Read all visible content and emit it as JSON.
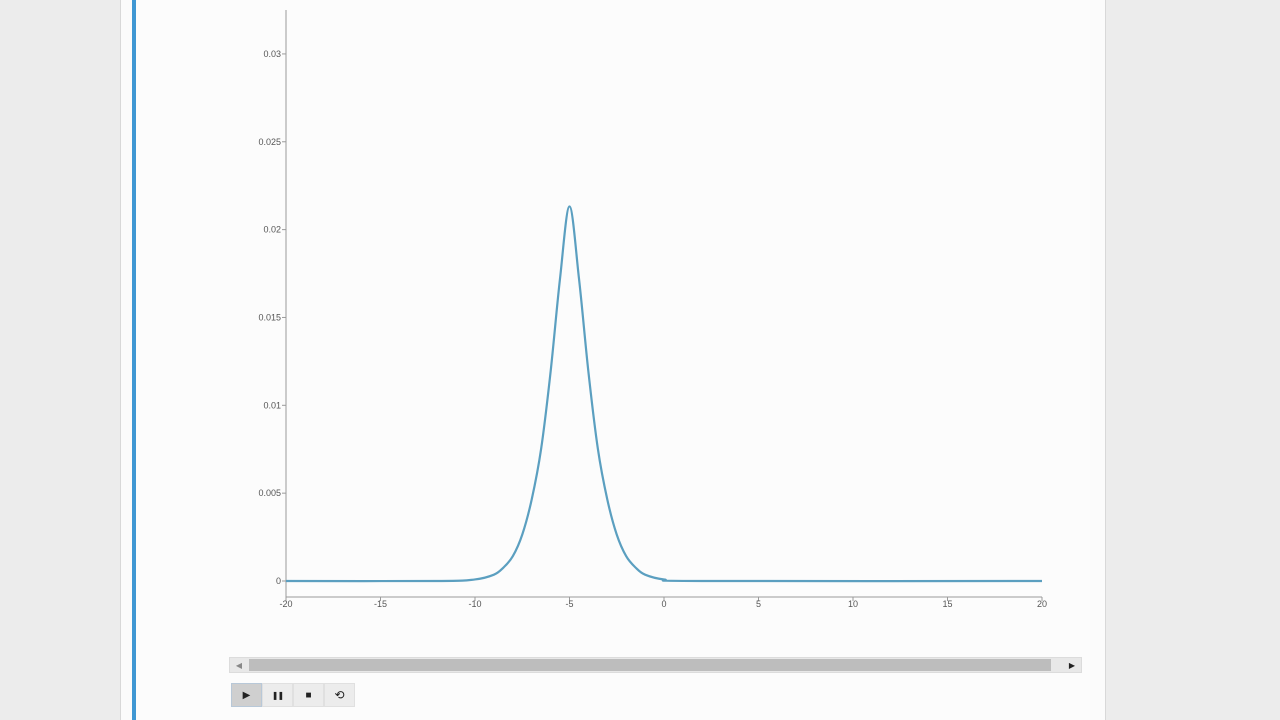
{
  "controls": {
    "play": "▶",
    "pause": "❚❚",
    "stop": "■",
    "loop": "⟲"
  },
  "scroll": {
    "left_arrow": "◀",
    "right_arrow": "▶"
  },
  "chart_data": {
    "type": "line",
    "title": "",
    "xlabel": "",
    "ylabel": "",
    "xlim": [
      -20,
      20
    ],
    "ylim": [
      0,
      0.0325
    ],
    "x_ticks": [
      -20,
      -15,
      -10,
      -5,
      0,
      5,
      10,
      15,
      20
    ],
    "x_tick_labels": [
      "-20",
      "-15",
      "-10",
      "-5",
      "0",
      "5",
      "10",
      "15",
      "20"
    ],
    "y_ticks": [
      0,
      0.005,
      0.01,
      0.015,
      0.02,
      0.025,
      0.03
    ],
    "y_tick_labels": [
      "0",
      "0.005",
      "0.01",
      "0.015",
      "0.02",
      "0.025",
      "0.03"
    ],
    "grid": false,
    "line_color": "#5b9fc0",
    "series": [
      {
        "x": [
          -20,
          -12,
          -10,
          -9,
          -8.5,
          -8,
          -7.5,
          -7,
          -6.5,
          -6,
          -5.5,
          -5,
          -4.5,
          -4,
          -3.5,
          -3,
          -2.5,
          -2,
          -1.5,
          -1,
          0,
          2,
          20
        ],
        "values": [
          0,
          0,
          9e-05,
          0.00036,
          0.00076,
          0.00141,
          0.00264,
          0.00464,
          0.00753,
          0.01191,
          0.01723,
          0.02132,
          0.01723,
          0.01191,
          0.00753,
          0.00464,
          0.00264,
          0.00141,
          0.00076,
          0.00036,
          9e-05,
          0,
          0
        ]
      }
    ]
  }
}
